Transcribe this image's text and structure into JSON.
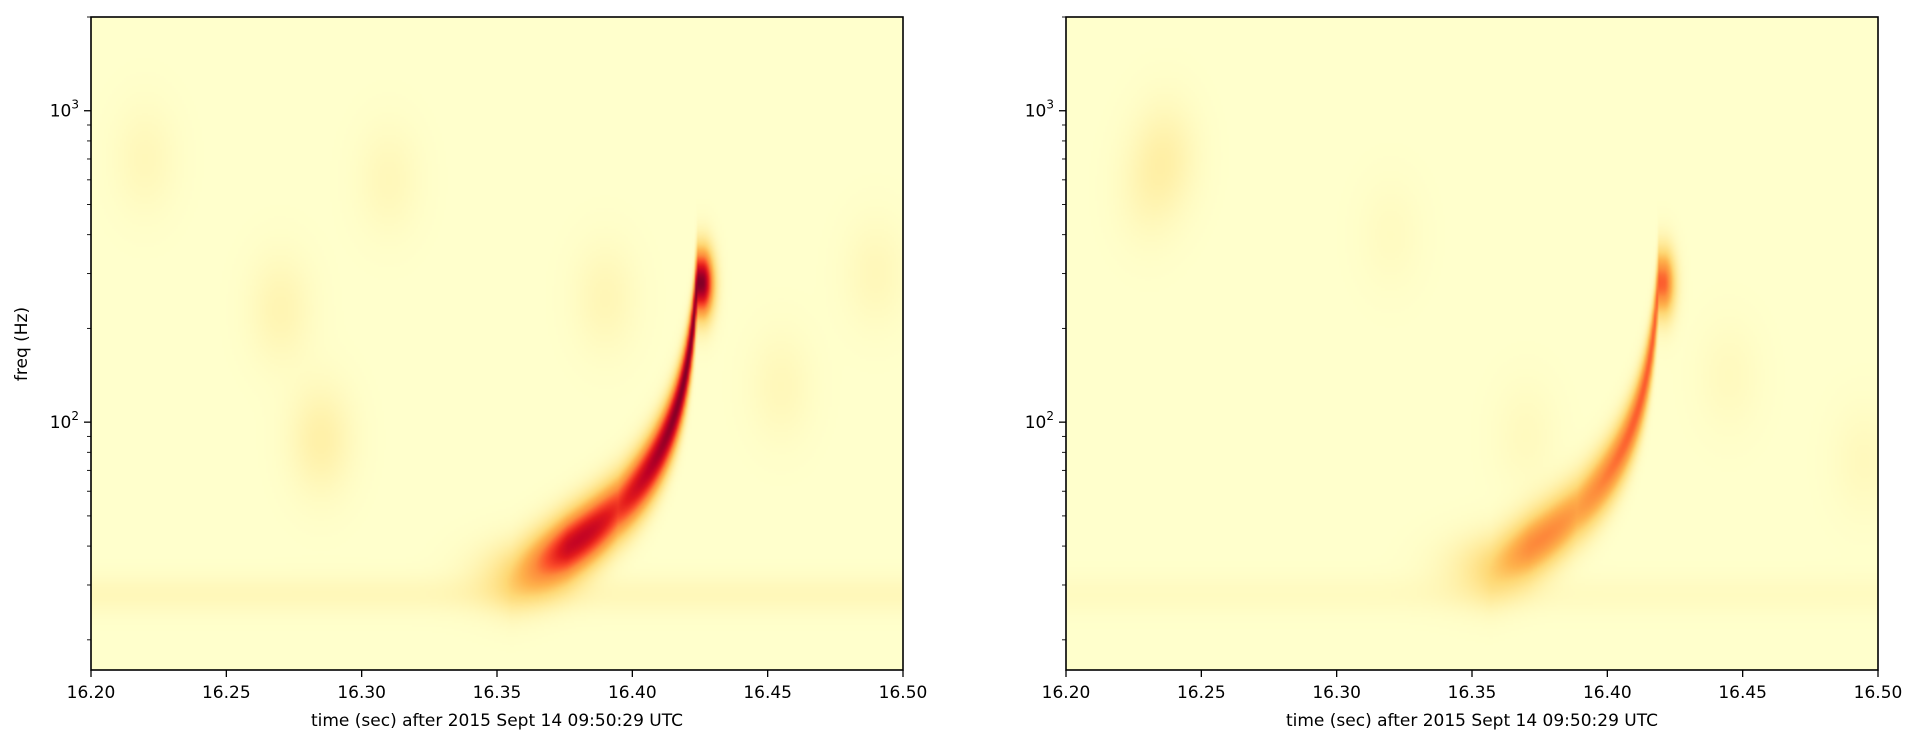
{
  "chart_data": [
    {
      "type": "heatmap",
      "title": "",
      "xlabel": "time (sec) after 2015 Sept 14 09:50:29 UTC",
      "ylabel": "freq (Hz)",
      "xlim": [
        16.2,
        16.5
      ],
      "ylim": [
        16,
        2000
      ],
      "yscale": "log",
      "xticks": [
        "16.20",
        "16.25",
        "16.30",
        "16.35",
        "16.40",
        "16.45",
        "16.50"
      ],
      "yticks": [
        {
          "value": 100,
          "base": "10",
          "exp": "2"
        },
        {
          "value": 1000,
          "base": "10",
          "exp": "3"
        }
      ],
      "colormap": [
        "#ffffcc",
        "#ffeda0",
        "#fed976",
        "#feb24c",
        "#fd8d3c",
        "#fc4e2a",
        "#e31a1c",
        "#bd0026",
        "#800026"
      ],
      "max_intensity": 1.0,
      "track": {
        "t_merger": 16.426,
        "f_start": 32,
        "f_peak": 280,
        "peak_time": 16.422,
        "peak_freq": 140
      },
      "noise_blobs": [
        {
          "t": 16.285,
          "f": 88,
          "amp": 0.1
        },
        {
          "t": 16.27,
          "f": 230,
          "amp": 0.07
        },
        {
          "t": 16.22,
          "f": 700,
          "amp": 0.05
        },
        {
          "t": 16.31,
          "f": 600,
          "amp": 0.05
        },
        {
          "t": 16.39,
          "f": 250,
          "amp": 0.06
        },
        {
          "t": 16.455,
          "f": 130,
          "amp": 0.05
        },
        {
          "t": 16.49,
          "f": 300,
          "amp": 0.05
        }
      ]
    },
    {
      "type": "heatmap",
      "title": "",
      "xlabel": "time (sec) after 2015 Sept 14 09:50:29 UTC",
      "ylabel": "",
      "xlim": [
        16.2,
        16.5
      ],
      "ylim": [
        16,
        2000
      ],
      "yscale": "log",
      "xticks": [
        "16.20",
        "16.25",
        "16.30",
        "16.35",
        "16.40",
        "16.45",
        "16.50"
      ],
      "yticks": [
        {
          "value": 100,
          "base": "10",
          "exp": "2"
        },
        {
          "value": 1000,
          "base": "10",
          "exp": "3"
        }
      ],
      "colormap": [
        "#ffffcc",
        "#ffeda0",
        "#fed976",
        "#feb24c",
        "#fd8d3c",
        "#fc4e2a",
        "#e31a1c",
        "#bd0026",
        "#800026"
      ],
      "max_intensity": 0.6,
      "track": {
        "t_merger": 16.421,
        "f_start": 34,
        "f_peak": 280,
        "peak_time": 16.415,
        "peak_freq": 150
      },
      "noise_blobs": [
        {
          "t": 16.237,
          "f": 720,
          "amp": 0.14
        },
        {
          "t": 16.23,
          "f": 550,
          "amp": 0.08
        },
        {
          "t": 16.37,
          "f": 90,
          "amp": 0.06
        },
        {
          "t": 16.445,
          "f": 140,
          "amp": 0.06
        },
        {
          "t": 16.495,
          "f": 75,
          "amp": 0.07
        },
        {
          "t": 16.32,
          "f": 400,
          "amp": 0.05
        }
      ]
    }
  ]
}
